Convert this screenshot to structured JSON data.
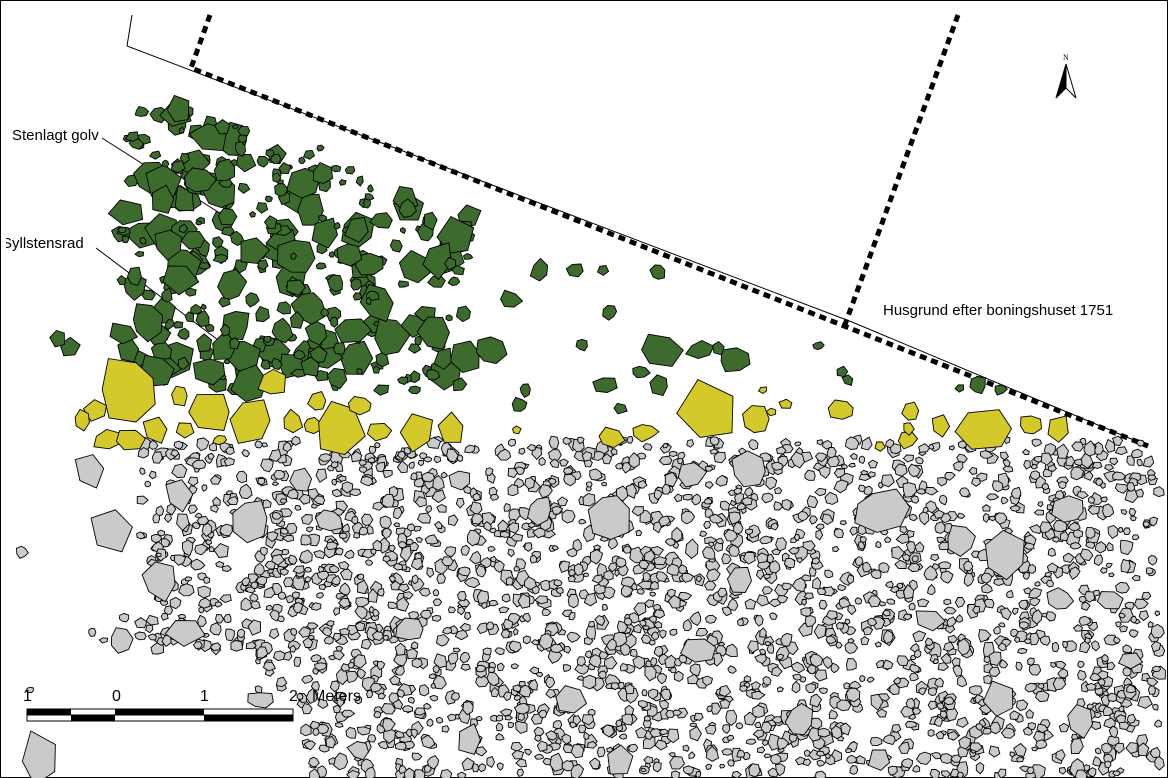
{
  "map": {
    "labels": {
      "floor": "Stenlagt golv",
      "sill": "Syllstensrad",
      "house": "Husgrund efter boningshuset 1751"
    },
    "north_letter": "N",
    "scale": {
      "ticks": [
        "1",
        "0",
        "1",
        "2"
      ],
      "unit": "Meters"
    },
    "colors": {
      "paved_floor": "#3d6b2e",
      "sill_stones": "#d4c92a",
      "other_stones": "#c9cacc",
      "outline": "#000000"
    },
    "icons": [
      "north-arrow-icon",
      "scale-bar-icon"
    ]
  }
}
